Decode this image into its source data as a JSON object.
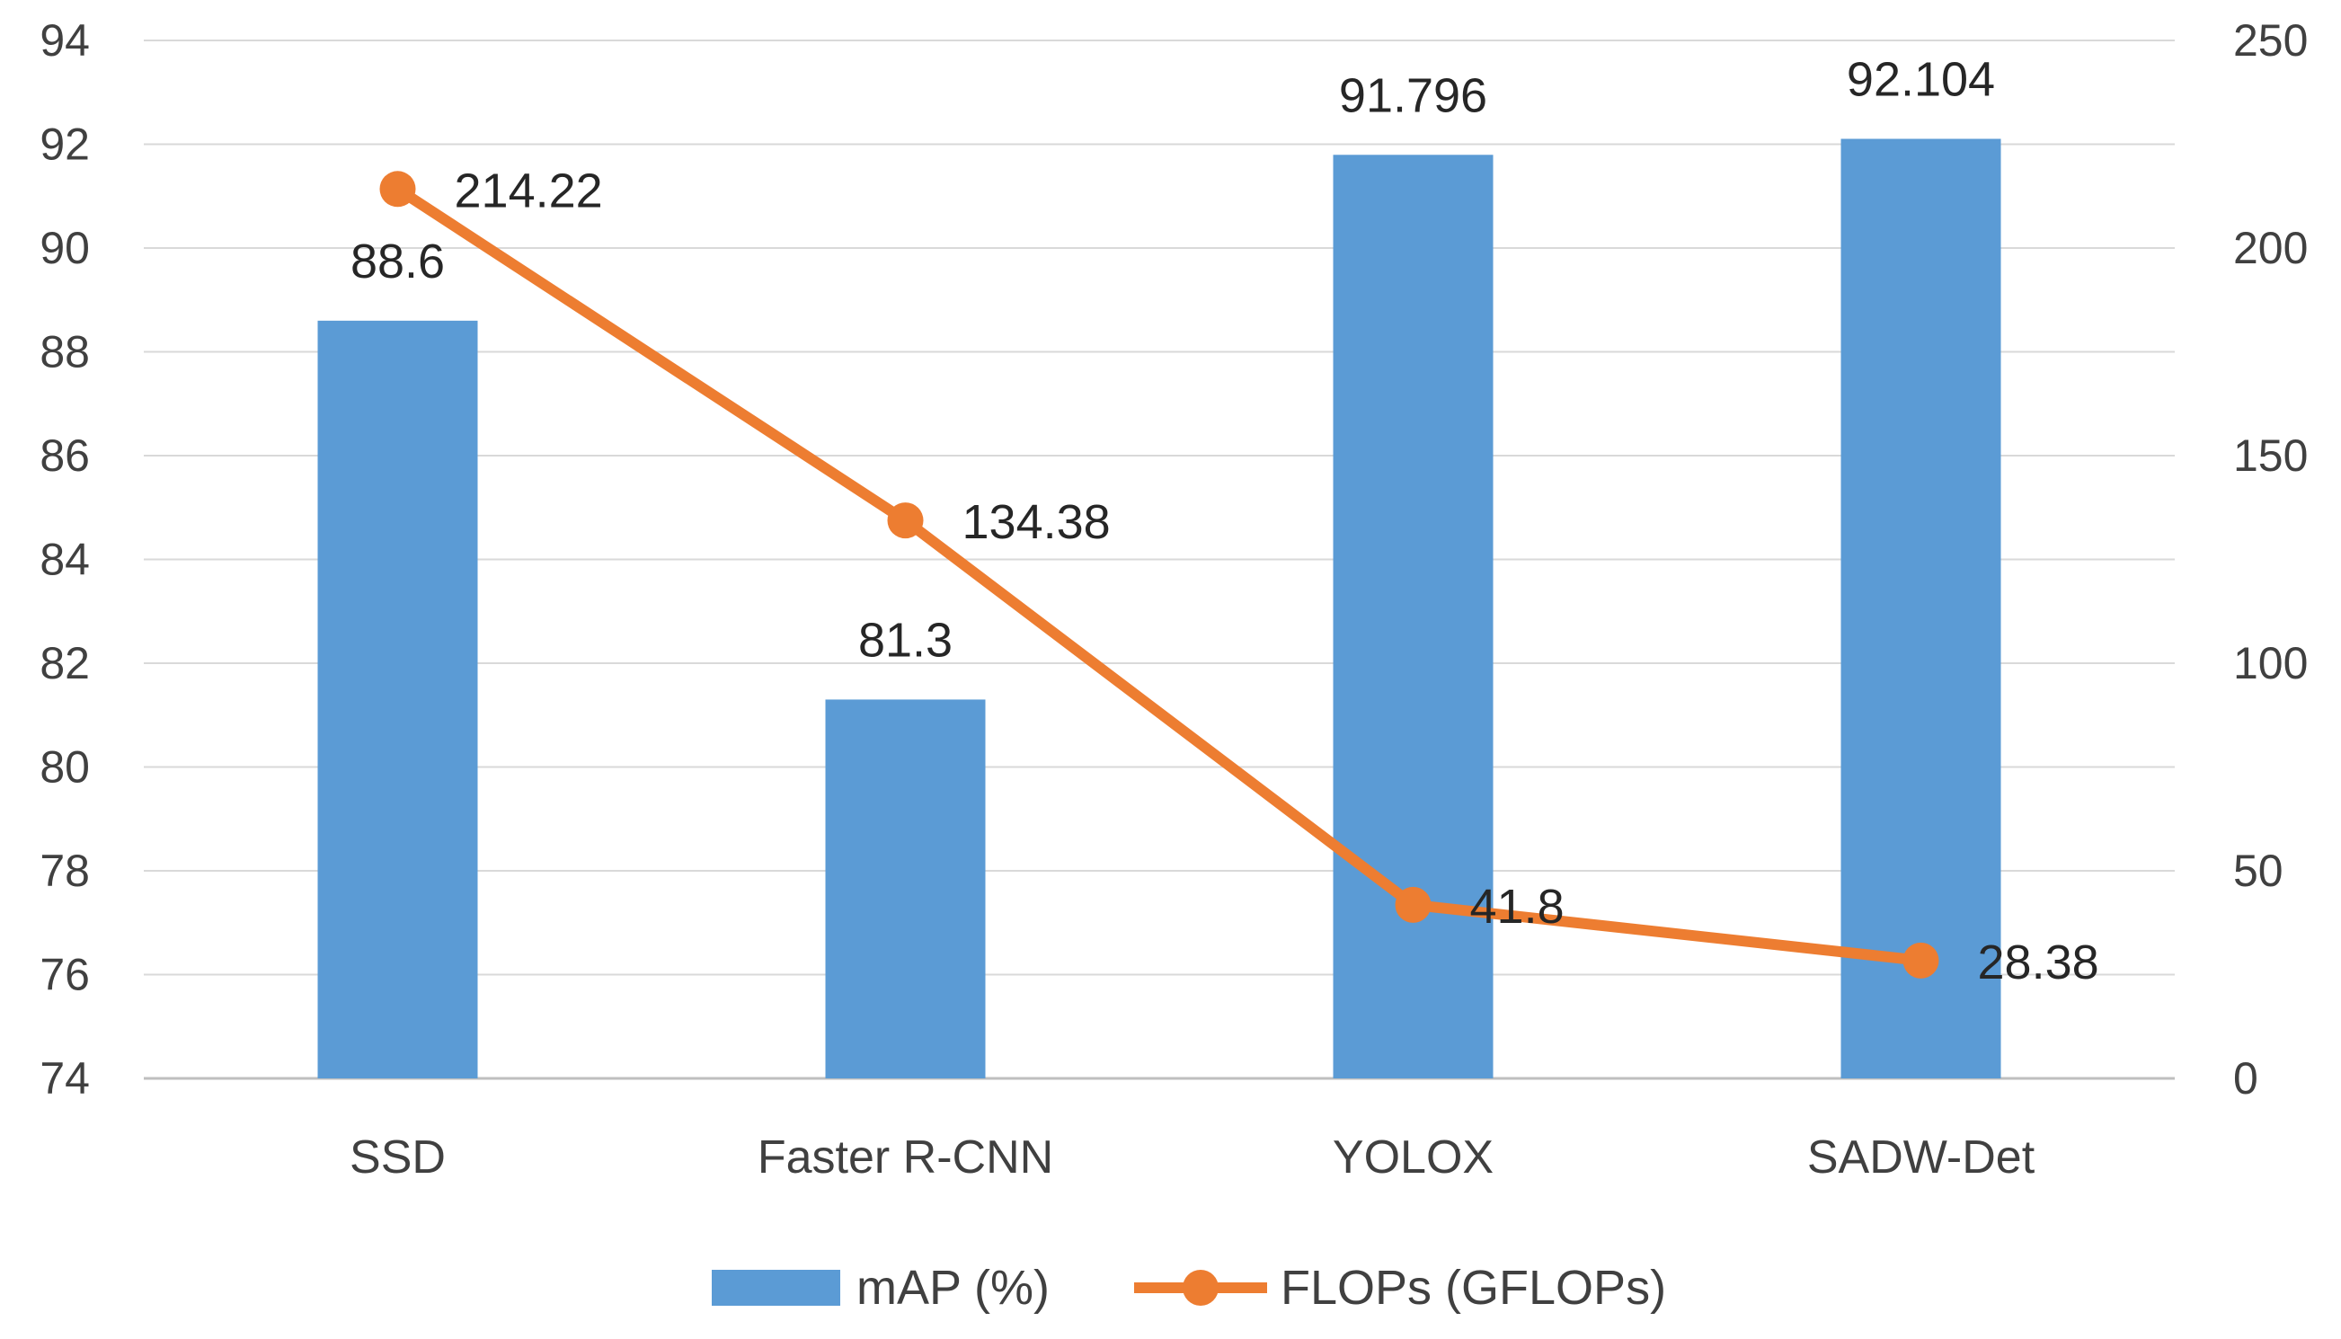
{
  "chart_data": {
    "type": "bar",
    "categories": [
      "SSD",
      "Faster R-CNN",
      "YOLOX",
      "SADW-Det"
    ],
    "series": [
      {
        "name": "mAP (%)",
        "type": "bar",
        "axis": "left",
        "color": "#5B9BD5",
        "values": [
          88.6,
          81.3,
          91.796,
          92.104
        ],
        "labels": [
          "88.6",
          "81.3",
          "91.796",
          "92.104"
        ]
      },
      {
        "name": "FLOPs (GFLOPs)",
        "type": "line",
        "axis": "right",
        "color": "#ED7D31",
        "values": [
          214.22,
          134.38,
          41.8,
          28.38
        ],
        "labels": [
          "214.22",
          "134.38",
          "41.8",
          "28.38"
        ]
      }
    ],
    "y_left": {
      "min": 74,
      "max": 94,
      "ticks": [
        "74",
        "76",
        "78",
        "80",
        "82",
        "84",
        "86",
        "88",
        "90",
        "92",
        "94"
      ]
    },
    "y_right": {
      "min": 0,
      "max": 250,
      "ticks": [
        "0",
        "50",
        "100",
        "150",
        "200",
        "250"
      ]
    },
    "grid": true,
    "legend": "bottom"
  }
}
